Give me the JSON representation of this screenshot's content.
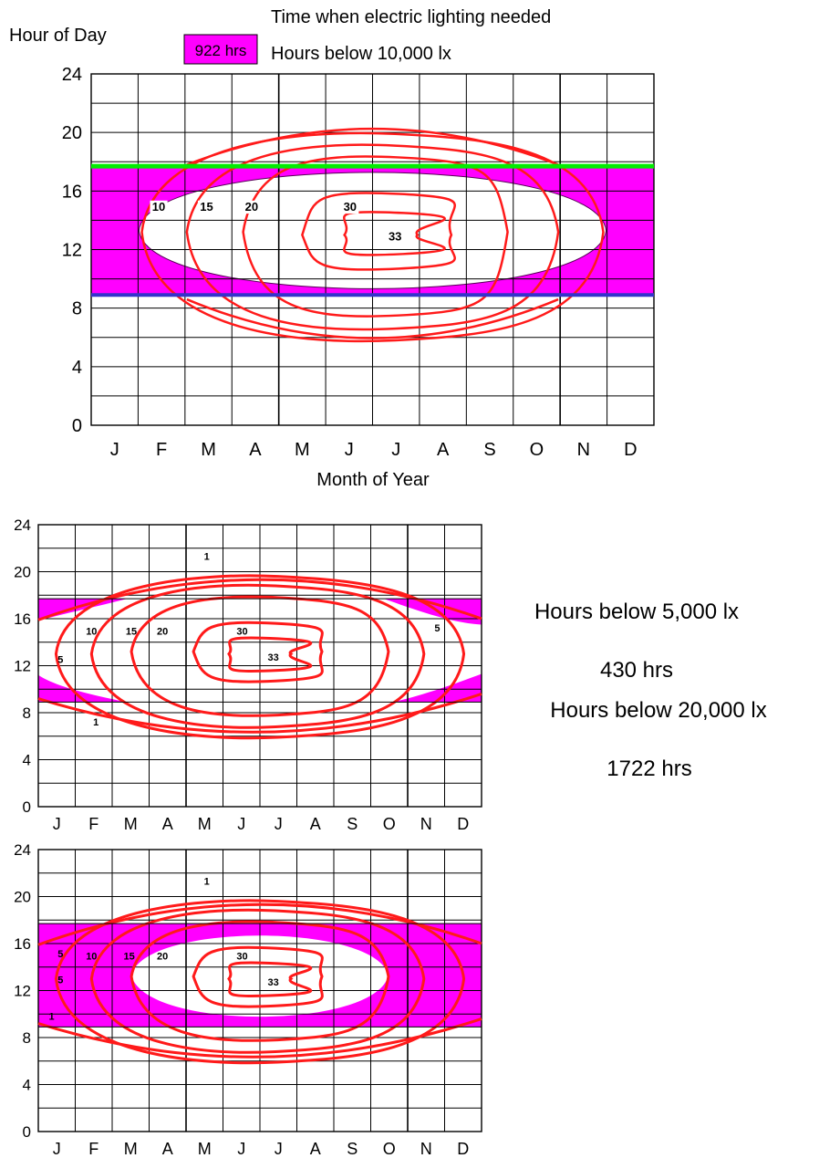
{
  "title": "Time when electric lighting needed",
  "ylabel": "Hour of Day",
  "xlabel": "Month of Year",
  "colors": {
    "fill": "#ff00ff",
    "contour": "#ff0000",
    "evening": "#00ee00",
    "morning": "#3333cc",
    "grid": "#000000"
  },
  "chart_data": [
    {
      "type": "contour",
      "subtitle": "Hours below 10,000 lx",
      "total_label": "922 hrs",
      "xlabel": "Month of Year",
      "ylabel": "Hour of Day",
      "categories": [
        "J",
        "F",
        "M",
        "A",
        "M",
        "J",
        "J",
        "A",
        "S",
        "O",
        "N",
        "D"
      ],
      "y_ticks": [
        0,
        4,
        8,
        12,
        16,
        20,
        24
      ],
      "ylim": [
        0,
        24
      ],
      "contour_levels": [
        "10",
        "15",
        "20",
        "30",
        "33"
      ],
      "evening_line_hour": 17.7,
      "morning_line_hour": 8.9,
      "shaded_region": "hours below threshold between 8.9 h and 17.7 h"
    },
    {
      "type": "contour",
      "subtitle": "Hours below 5,000 lx",
      "total_label": "430 hrs",
      "categories": [
        "J",
        "F",
        "M",
        "A",
        "M",
        "J",
        "J",
        "A",
        "S",
        "O",
        "N",
        "D"
      ],
      "y_ticks": [
        0,
        4,
        8,
        12,
        16,
        20,
        24
      ],
      "ylim": [
        0,
        24
      ],
      "contour_levels": [
        "1",
        "1",
        "5",
        "5",
        "10",
        "15",
        "20",
        "30",
        "33"
      ]
    },
    {
      "type": "contour",
      "subtitle": "Hours below 20,000 lx",
      "total_label": "1722 hrs",
      "categories": [
        "J",
        "F",
        "M",
        "A",
        "M",
        "J",
        "J",
        "A",
        "S",
        "O",
        "N",
        "D"
      ],
      "y_ticks": [
        0,
        4,
        8,
        12,
        16,
        20,
        24
      ],
      "ylim": [
        0,
        24
      ],
      "contour_levels": [
        "1",
        "1",
        "5",
        "5",
        "10",
        "15",
        "20",
        "30",
        "33"
      ]
    }
  ]
}
